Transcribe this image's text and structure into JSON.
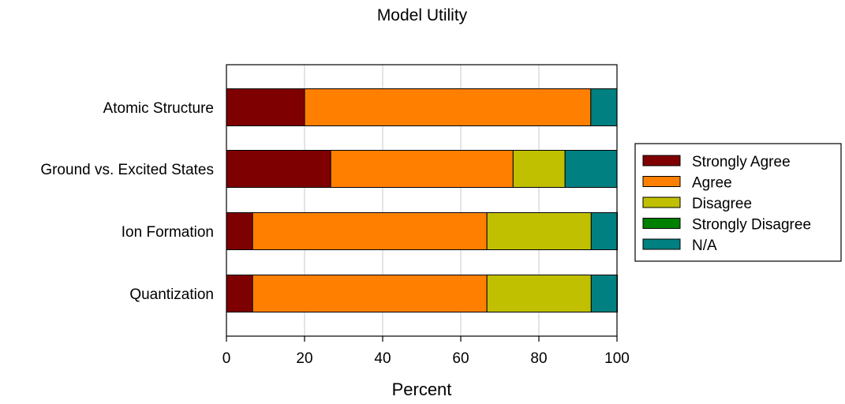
{
  "chart_data": {
    "type": "bar",
    "orientation": "horizontal",
    "stacked": true,
    "title": "Model Utility",
    "xlabel": "Percent",
    "ylabel": "",
    "xlim": [
      0,
      100
    ],
    "x_ticks": [
      "0",
      "20",
      "40",
      "60",
      "80",
      "100"
    ],
    "grid": "vertical",
    "legend_position": "right",
    "categories": [
      "Atomic Structure",
      "Ground vs. Excited States",
      "Ion Formation",
      "Quantization"
    ],
    "series": [
      {
        "name": "Strongly Agree",
        "color": "#7f0000",
        "values": [
          20,
          26.7,
          6.7,
          6.7
        ]
      },
      {
        "name": "Agree",
        "color": "#ff8000",
        "values": [
          73.3,
          46.7,
          60,
          60
        ]
      },
      {
        "name": "Disagree",
        "color": "#c0c000",
        "values": [
          0,
          13.3,
          26.7,
          26.7
        ]
      },
      {
        "name": "Strongly Disagree",
        "color": "#008000",
        "values": [
          0,
          0,
          0,
          0
        ]
      },
      {
        "name": "N/A",
        "color": "#008080",
        "values": [
          6.7,
          13.3,
          6.7,
          6.7
        ]
      }
    ]
  }
}
